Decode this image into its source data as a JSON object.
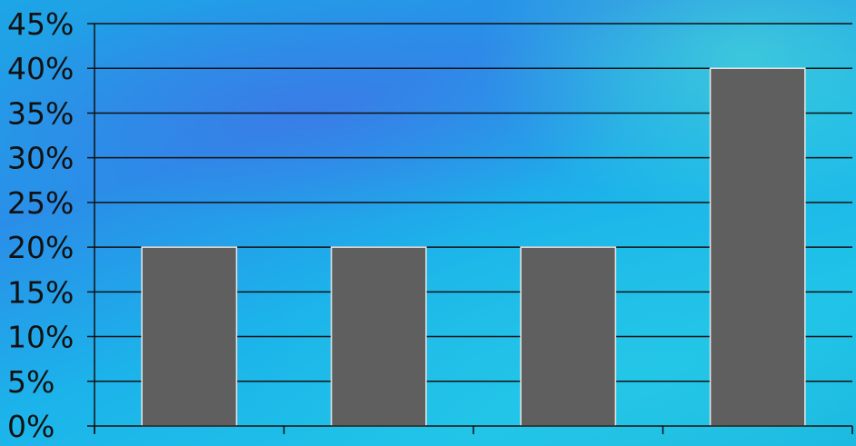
{
  "chart_data": {
    "type": "bar",
    "categories": [
      "",
      "",
      "",
      ""
    ],
    "values": [
      0.2,
      0.2,
      0.2,
      0.4
    ],
    "ylim": [
      0,
      0.45
    ],
    "ytick_step": 0.05,
    "ytick_labels": [
      "0%",
      "5%",
      "10%",
      "15%",
      "20%",
      "25%",
      "30%",
      "35%",
      "40%",
      "45%"
    ],
    "grid": true,
    "legend": "none",
    "title": "",
    "xlabel": "",
    "ylabel": "",
    "colors": {
      "bar_fill": "#5f5f5f",
      "bar_stroke": "#e8e8e8",
      "gridline": "#111111",
      "axis": "#111111"
    }
  }
}
